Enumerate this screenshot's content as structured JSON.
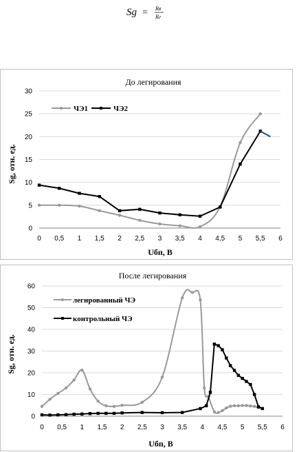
{
  "formula": {
    "lhs": "Sg",
    "equals": "=",
    "numerator": "Rв",
    "denominator": "Rг"
  },
  "chart_data": [
    {
      "type": "line",
      "title": "До легирования",
      "xlabel": "Uбп, В",
      "ylabel": "Sg, отн. ед.",
      "xlim": [
        0,
        6
      ],
      "ylim": [
        0,
        30
      ],
      "xticks": [
        "0",
        "0,5",
        "1",
        "1,5",
        "2",
        "2,5",
        "3",
        "3,5",
        "4",
        "4,5",
        "5",
        "5,5",
        "6"
      ],
      "yticks": [
        "0",
        "5",
        "10",
        "15",
        "20",
        "25",
        "30"
      ],
      "grid": "horizontal",
      "legend": "top-left",
      "series": [
        {
          "name": "ЧЭ1",
          "color": "#999999",
          "marker": "circle",
          "x": [
            0,
            0.5,
            1,
            1.5,
            2,
            2.5,
            3,
            3.5,
            4,
            4.5,
            5,
            5.5
          ],
          "y": [
            5,
            5,
            4.8,
            3.8,
            2.8,
            1.7,
            0.9,
            0.5,
            0.3,
            4.7,
            18.7,
            25
          ]
        },
        {
          "name": "ЧЭ2",
          "color": "#000000",
          "marker": "square",
          "x": [
            0,
            0.5,
            1,
            1.5,
            2,
            2.5,
            3,
            3.5,
            4,
            4.5,
            5,
            5.5
          ],
          "y": [
            9.4,
            8.7,
            7.6,
            6.9,
            3.8,
            4.1,
            3.3,
            2.9,
            2.6,
            4.6,
            14,
            21.2
          ]
        },
        {
          "name": "",
          "color": "#1f4e79",
          "marker": "none",
          "x": [
            5.5,
            5.75
          ],
          "y": [
            21.2,
            20
          ]
        }
      ]
    },
    {
      "type": "line",
      "title": "После легирования",
      "xlabel": "Uбп, В",
      "ylabel": "Sg, отн. ед.",
      "xlim": [
        0,
        6
      ],
      "ylim": [
        0,
        60
      ],
      "xticks": [
        "0",
        "0,5",
        "1",
        "1,5",
        "2",
        "2,5",
        "3",
        "3,5",
        "4",
        "4,5",
        "5",
        "5,5",
        "6"
      ],
      "yticks": [
        "0",
        "10",
        "20",
        "30",
        "40",
        "50",
        "60"
      ],
      "grid": "horizontal",
      "legend": "top-left",
      "series": [
        {
          "name": "легированный ЧЭ",
          "color": "#999999",
          "marker": "circle",
          "x": [
            0,
            0.2,
            0.4,
            0.6,
            0.8,
            1.0,
            1.2,
            1.4,
            1.6,
            1.8,
            2.0,
            2.5,
            3.0,
            3.5,
            3.75,
            3.95,
            4.05,
            4.15,
            4.3,
            4.4,
            4.5,
            4.6,
            4.7,
            4.8,
            4.9,
            5.0,
            5.1,
            5.2,
            5.3,
            5.4,
            5.5
          ],
          "y": [
            4.5,
            7.8,
            10.5,
            13,
            16.7,
            21.2,
            12.5,
            6.9,
            4.8,
            4.5,
            5,
            6.4,
            18,
            54.5,
            57,
            53.5,
            13,
            9,
            2,
            1.7,
            2.6,
            3.8,
            4.6,
            4.8,
            4.8,
            4.9,
            4.9,
            4.7,
            4.5,
            3.9,
            3.6
          ]
        },
        {
          "name": "контрольный ЧЭ",
          "color": "#000000",
          "marker": "square",
          "x": [
            0,
            0.2,
            0.4,
            0.6,
            0.8,
            1.0,
            1.2,
            1.4,
            1.6,
            1.8,
            2.0,
            2.5,
            3.0,
            3.5,
            3.95,
            4.1,
            4.2,
            4.3,
            4.4,
            4.5,
            4.6,
            4.7,
            4.8,
            4.9,
            5.0,
            5.1,
            5.2,
            5.3,
            5.4,
            5.5
          ],
          "y": [
            0.6,
            0.5,
            0.6,
            0.7,
            0.9,
            1.0,
            1.2,
            1.3,
            1.3,
            1.3,
            1.5,
            1.7,
            1.6,
            1.7,
            3.5,
            4.8,
            11,
            33.2,
            32.5,
            30.6,
            26.8,
            23.3,
            21.1,
            18.8,
            17.4,
            16,
            14.6,
            10,
            4.3,
            3.5
          ]
        }
      ]
    }
  ]
}
